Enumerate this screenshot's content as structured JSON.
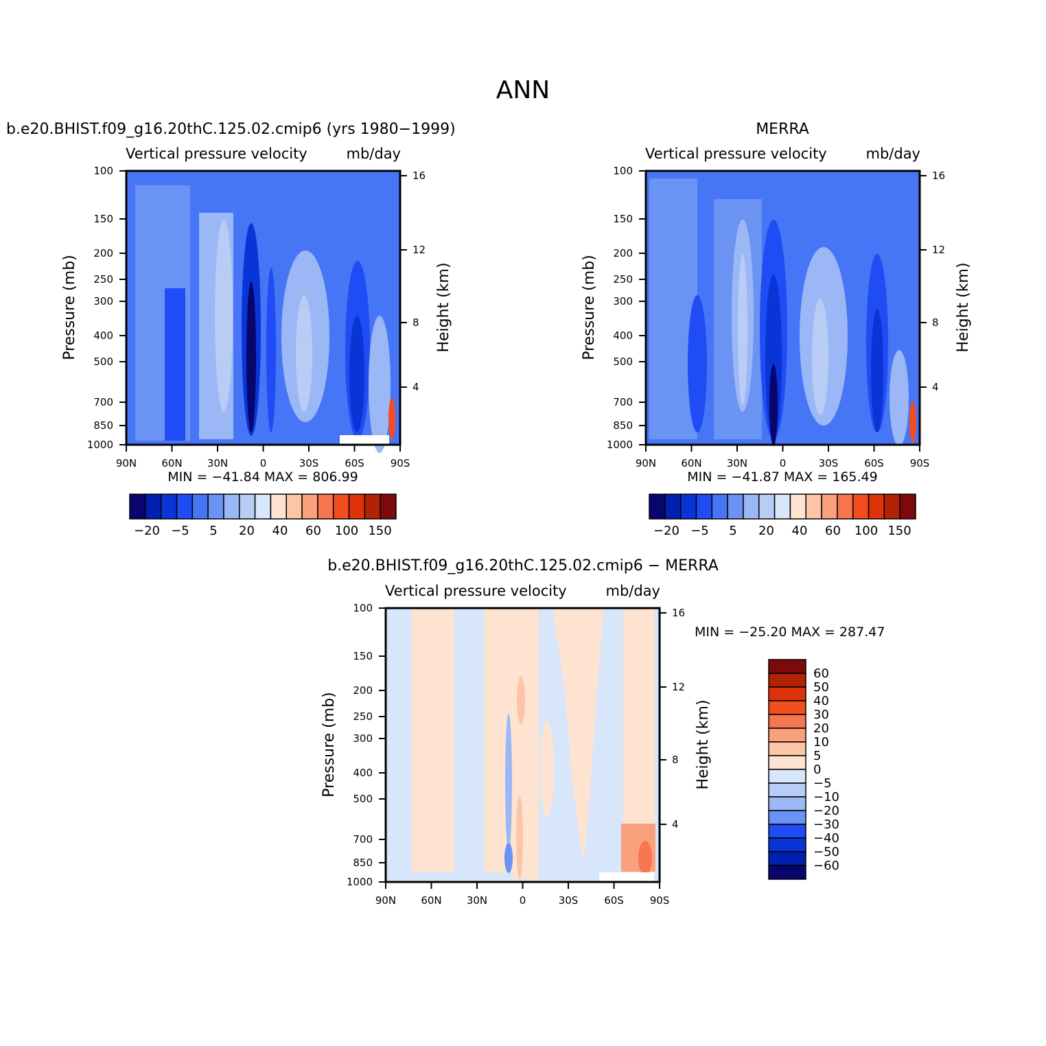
{
  "figure": {
    "title": "ANN"
  },
  "colors": {
    "scale": [
      "#08056c",
      "#0020b0",
      "#0a35d6",
      "#1f4cf4",
      "#4676f5",
      "#6b93f4",
      "#9bb7f5",
      "#b9ccf6",
      "#d8e6fb",
      "#fde3d0",
      "#fcc6a6",
      "#f9a07c",
      "#f5764f",
      "#f24c1f",
      "#de3309",
      "#b22306",
      "#7d0a0a"
    ],
    "diff_scale": [
      "#08056c",
      "#0020b0",
      "#0a35d6",
      "#1f4cf4",
      "#6b93f4",
      "#9bb7f5",
      "#b9ccf6",
      "#d8e6fb",
      "#fde3d0",
      "#fcc6a6",
      "#f9a07c",
      "#f5764f",
      "#f24c1f",
      "#de3309",
      "#b22306",
      "#7d0a0a"
    ],
    "missing": "#ffffff"
  },
  "chart_data": [
    {
      "type": "contour",
      "title": "b.e20.BHIST.f09_g16.20thC.125.02.cmip6 (yrs 1980−1999)",
      "subtitle_left": "Vertical pressure velocity",
      "subtitle_right": "mb/day",
      "ylabel": "Pressure (mb)",
      "ylabel_right": "Height (km)",
      "x_ticks": [
        "90N",
        "60N",
        "30N",
        "0",
        "30S",
        "60S",
        "90S"
      ],
      "y_ticks": [
        "100",
        "150",
        "200",
        "250",
        "300",
        "400",
        "500",
        "700",
        "850",
        "1000"
      ],
      "y_ticks_right": [
        "16",
        "12",
        "8",
        "4"
      ],
      "stats": "MIN = −41.84   MAX = 806.99",
      "colorbar_labels": [
        "−20",
        "−5",
        "5",
        "20",
        "40",
        "60",
        "100",
        "150"
      ],
      "min": -41.84,
      "max": 806.99
    },
    {
      "type": "contour",
      "title": "MERRA",
      "subtitle_left": "Vertical pressure velocity",
      "subtitle_right": "mb/day",
      "ylabel": "Pressure (mb)",
      "ylabel_right": "Height (km)",
      "x_ticks": [
        "90N",
        "60N",
        "30N",
        "0",
        "30S",
        "60S",
        "90S"
      ],
      "y_ticks": [
        "100",
        "150",
        "200",
        "250",
        "300",
        "400",
        "500",
        "700",
        "850",
        "1000"
      ],
      "y_ticks_right": [
        "16",
        "12",
        "8",
        "4"
      ],
      "stats": "MIN = −41.87   MAX = 165.49",
      "colorbar_labels": [
        "−20",
        "−5",
        "5",
        "20",
        "40",
        "60",
        "100",
        "150"
      ],
      "min": -41.87,
      "max": 165.49
    },
    {
      "type": "contour",
      "title": "b.e20.BHIST.f09_g16.20thC.125.02.cmip6 − MERRA",
      "subtitle_left": "Vertical pressure velocity",
      "subtitle_right": "mb/day",
      "ylabel": "Pressure (mb)",
      "ylabel_right": "Height (km)",
      "x_ticks": [
        "90N",
        "60N",
        "30N",
        "0",
        "30S",
        "60S",
        "90S"
      ],
      "y_ticks": [
        "100",
        "150",
        "200",
        "250",
        "300",
        "400",
        "500",
        "700",
        "850",
        "1000"
      ],
      "y_ticks_right": [
        "16",
        "12",
        "8",
        "4"
      ],
      "stats": "MIN = −25.20   MAX = 287.47",
      "colorbar_labels": [
        "60",
        "50",
        "40",
        "30",
        "20",
        "10",
        "5",
        "0",
        "−5",
        "−10",
        "−20",
        "−30",
        "−40",
        "−50",
        "−60"
      ],
      "min": -25.2,
      "max": 287.47
    }
  ]
}
